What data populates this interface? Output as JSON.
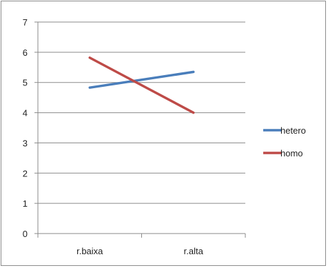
{
  "chart_data": {
    "type": "line",
    "title": "",
    "xlabel": "",
    "ylabel": "",
    "categories": [
      "r.baixa",
      "r.alta"
    ],
    "ylim": [
      0,
      7
    ],
    "yticks": [
      0,
      1,
      2,
      3,
      4,
      5,
      6,
      7
    ],
    "grid": "horizontal",
    "legend_position": "right",
    "series": [
      {
        "name": "hetero",
        "color": "#4a7ebb",
        "values": [
          4.83,
          5.35
        ]
      },
      {
        "name": "homo",
        "color": "#be4b48",
        "values": [
          5.82,
          4.0
        ]
      }
    ]
  }
}
